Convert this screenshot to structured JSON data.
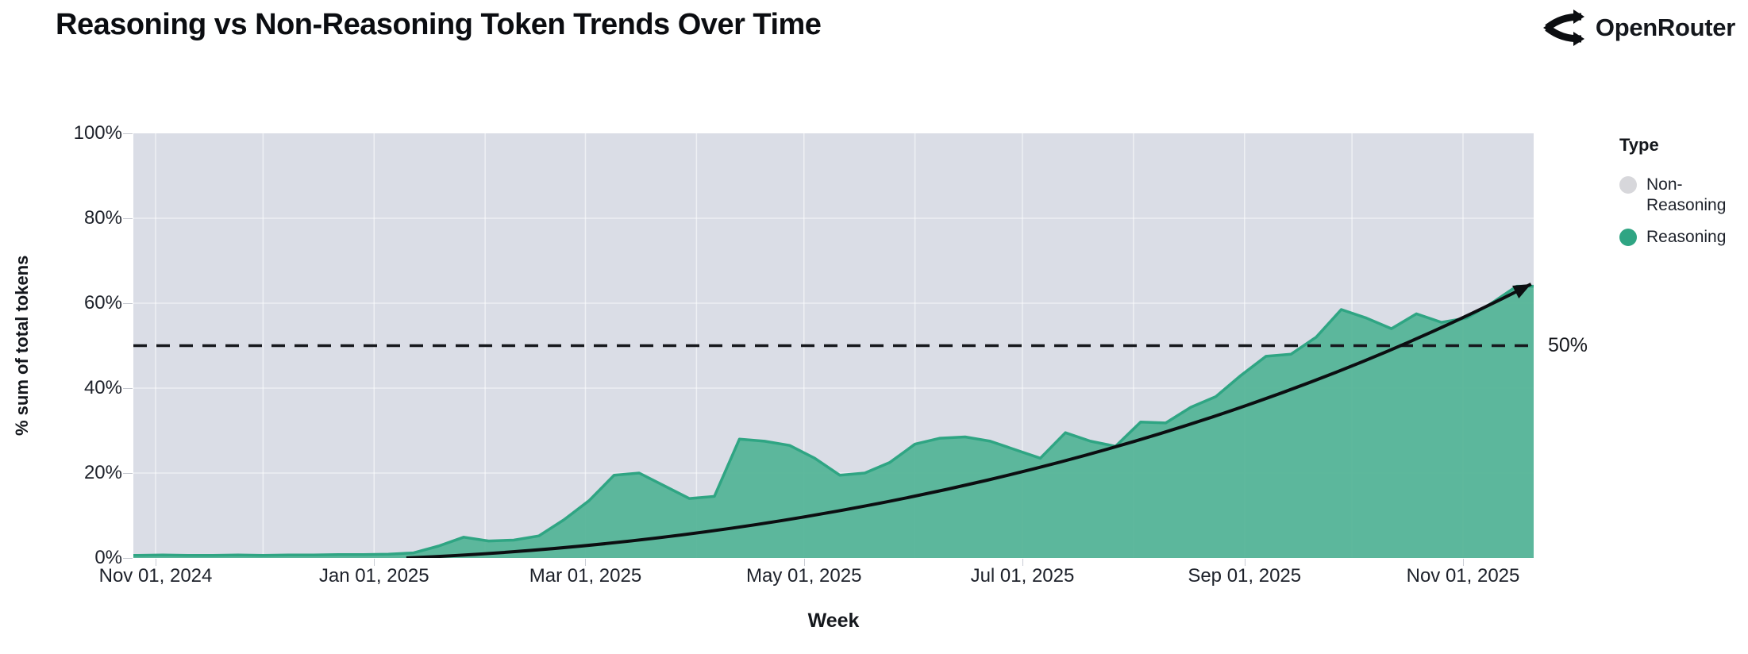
{
  "header": {
    "title": "Reasoning vs Non-Reasoning Token Trends Over Time",
    "brand": "OpenRouter"
  },
  "chart_data": {
    "type": "area",
    "title": "Reasoning vs Non-Reasoning Token Trends Over Time",
    "subtitle": "",
    "xlabel": "Week",
    "ylabel": "% sum of total tokens",
    "ylim": [
      0,
      100
    ],
    "grid": true,
    "legend_position": "right",
    "legend": {
      "title": "Type",
      "items": [
        {
          "label": "Non-Reasoning",
          "color": "#d7d7db"
        },
        {
          "label": "Reasoning",
          "color": "#2fa583"
        }
      ]
    },
    "y_ticks": [
      {
        "label": "0%",
        "value": 0
      },
      {
        "label": "20%",
        "value": 20
      },
      {
        "label": "40%",
        "value": 40
      },
      {
        "label": "60%",
        "value": 60
      },
      {
        "label": "80%",
        "value": 80
      },
      {
        "label": "100%",
        "value": 100
      }
    ],
    "x_ticks": [
      {
        "label": "Nov 01, 2024",
        "date": "2024-11-01"
      },
      {
        "label": "Jan 01, 2025",
        "date": "2025-01-01"
      },
      {
        "label": "Mar 01, 2025",
        "date": "2025-03-01"
      },
      {
        "label": "May 01, 2025",
        "date": "2025-05-01"
      },
      {
        "label": "Jul 01, 2025",
        "date": "2025-07-01"
      },
      {
        "label": "Sep 01, 2025",
        "date": "2025-09-01"
      },
      {
        "label": "Nov 01, 2025",
        "date": "2025-11-01"
      }
    ],
    "x_range": [
      "2024-10-27",
      "2025-11-21"
    ],
    "series": [
      {
        "name": "Reasoning",
        "unit": "% of total tokens (weekly)",
        "points": [
          [
            "2024-10-27",
            0.6
          ],
          [
            "2024-11-03",
            0.7
          ],
          [
            "2024-11-10",
            0.6
          ],
          [
            "2024-11-17",
            0.6
          ],
          [
            "2024-11-24",
            0.7
          ],
          [
            "2024-12-01",
            0.6
          ],
          [
            "2024-12-08",
            0.7
          ],
          [
            "2024-12-15",
            0.7
          ],
          [
            "2024-12-22",
            0.8
          ],
          [
            "2024-12-29",
            0.8
          ],
          [
            "2025-01-05",
            0.9
          ],
          [
            "2025-01-12",
            1.2
          ],
          [
            "2025-01-19",
            2.8
          ],
          [
            "2025-01-26",
            4.9
          ],
          [
            "2025-02-02",
            4.0
          ],
          [
            "2025-02-09",
            4.2
          ],
          [
            "2025-02-16",
            5.2
          ],
          [
            "2025-02-23",
            9.0
          ],
          [
            "2025-03-02",
            13.5
          ],
          [
            "2025-03-09",
            19.5
          ],
          [
            "2025-03-16",
            20.0
          ],
          [
            "2025-03-23",
            17.0
          ],
          [
            "2025-03-30",
            14.0
          ],
          [
            "2025-04-06",
            14.5
          ],
          [
            "2025-04-13",
            28.0
          ],
          [
            "2025-04-20",
            27.5
          ],
          [
            "2025-04-27",
            26.5
          ],
          [
            "2025-05-04",
            23.5
          ],
          [
            "2025-05-11",
            19.5
          ],
          [
            "2025-05-18",
            20.0
          ],
          [
            "2025-05-25",
            22.5
          ],
          [
            "2025-06-01",
            26.8
          ],
          [
            "2025-06-08",
            28.2
          ],
          [
            "2025-06-15",
            28.5
          ],
          [
            "2025-06-22",
            27.5
          ],
          [
            "2025-06-29",
            25.5
          ],
          [
            "2025-07-06",
            23.5
          ],
          [
            "2025-07-13",
            29.5
          ],
          [
            "2025-07-20",
            27.5
          ],
          [
            "2025-07-27",
            26.3
          ],
          [
            "2025-08-03",
            32.0
          ],
          [
            "2025-08-10",
            31.8
          ],
          [
            "2025-08-17",
            35.5
          ],
          [
            "2025-08-24",
            38.0
          ],
          [
            "2025-08-31",
            43.0
          ],
          [
            "2025-09-07",
            47.5
          ],
          [
            "2025-09-14",
            48.0
          ],
          [
            "2025-09-21",
            52.0
          ],
          [
            "2025-09-28",
            58.5
          ],
          [
            "2025-10-05",
            56.5
          ],
          [
            "2025-10-12",
            54.0
          ],
          [
            "2025-10-19",
            57.5
          ],
          [
            "2025-10-26",
            55.5
          ],
          [
            "2025-11-02",
            56.5
          ],
          [
            "2025-11-09",
            60.0
          ],
          [
            "2025-11-16",
            64.0
          ]
        ]
      }
    ],
    "annotations": {
      "reference_line": {
        "label": "50%",
        "value": 50,
        "style": "dashed"
      },
      "trend_arrow": {
        "start": {
          "date": "2025-01-10",
          "value": 0
        },
        "end": {
          "date": "2025-11-20",
          "value": 64.5
        }
      }
    },
    "colors": {
      "reasoning_fill": "#55b498",
      "reasoning_stroke": "#2fa583",
      "non_reasoning_fill": "#dadde6",
      "gridline": "#ffffff",
      "reference_line": "#16181d",
      "trend_arrow": "#0c0e11"
    }
  }
}
